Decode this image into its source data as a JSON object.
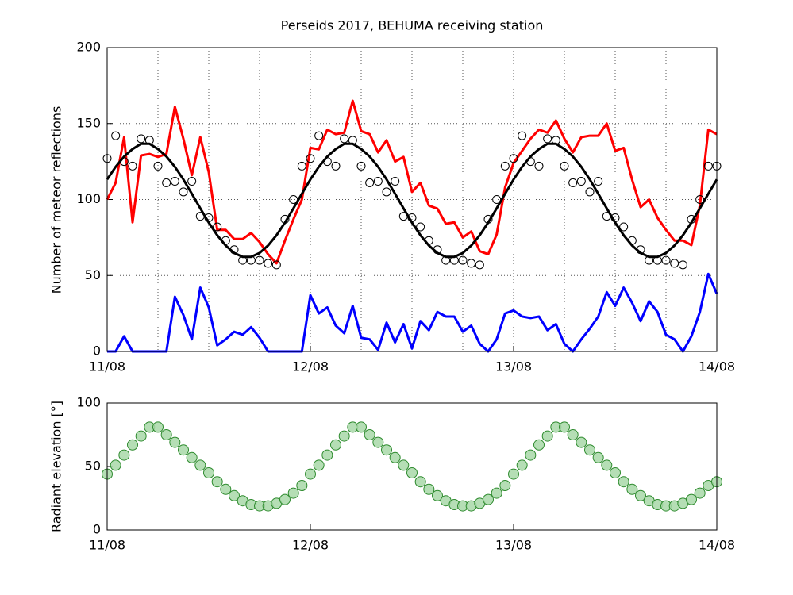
{
  "chart_data": [
    {
      "type": "line",
      "title": "Perseids 2017, BEHUMA receiving station",
      "ylabel": "Number of meteor reflections",
      "x": [
        0,
        1,
        2,
        3,
        4,
        5,
        6,
        7,
        8,
        9,
        10,
        11,
        12,
        13,
        14,
        15,
        16,
        17,
        18,
        19,
        20,
        21,
        22,
        23,
        24,
        25,
        26,
        27,
        28,
        29,
        30,
        31,
        32,
        33,
        34,
        35,
        36,
        37,
        38,
        39,
        40,
        41,
        42,
        43,
        44,
        45,
        46,
        47,
        48,
        49,
        50,
        51,
        52,
        53,
        54,
        55,
        56,
        57,
        58,
        59,
        60,
        61,
        62,
        63,
        64,
        65,
        66,
        67,
        68,
        69,
        70,
        71,
        72
      ],
      "xlim": [
        0,
        72
      ],
      "xticks": [
        {
          "value": 0,
          "label": "11/08"
        },
        {
          "value": 24,
          "label": "12/08"
        },
        {
          "value": 48,
          "label": "13/08"
        },
        {
          "value": 72,
          "label": "14/08"
        }
      ],
      "xgridlines": [
        0,
        6,
        12,
        18,
        24,
        30,
        36,
        42,
        48,
        54,
        60,
        66,
        72
      ],
      "ylim": [
        0,
        200
      ],
      "yticks": [
        0,
        50,
        100,
        150,
        200
      ],
      "grid": true,
      "series": [
        {
          "mode": "line",
          "color": "#ff0000",
          "values": [
            100,
            111,
            141,
            85,
            129,
            130,
            128,
            130,
            161,
            140,
            116,
            141,
            118,
            80,
            80,
            74,
            74,
            78,
            72,
            64,
            58,
            73,
            87,
            100,
            134,
            133,
            146,
            143,
            144,
            165,
            145,
            143,
            131,
            139,
            125,
            128,
            105,
            111,
            96,
            94,
            84,
            85,
            75,
            79,
            66,
            64,
            77,
            108,
            124,
            132,
            140,
            146,
            144,
            152,
            140,
            131,
            141,
            142,
            142,
            150,
            132,
            134,
            113,
            95,
            100,
            88,
            80,
            73,
            73,
            70,
            96,
            146,
            143
          ]
        },
        {
          "mode": "line",
          "color": "#0000ff",
          "values": [
            0,
            0,
            10,
            0,
            0,
            0,
            0,
            0,
            36,
            24,
            8,
            42,
            29,
            4,
            8,
            13,
            11,
            16,
            9,
            0,
            0,
            0,
            0,
            0,
            37,
            25,
            29,
            17,
            12,
            30,
            9,
            8,
            1,
            19,
            6,
            18,
            2,
            20,
            14,
            26,
            23,
            23,
            13,
            17,
            5,
            0,
            8,
            25,
            27,
            23,
            22,
            23,
            14,
            18,
            5,
            0,
            8,
            15,
            23,
            39,
            30,
            42,
            32,
            20,
            33,
            26,
            11,
            8,
            0,
            10,
            26,
            51,
            38
          ]
        },
        {
          "mode": "line",
          "color": "#000000",
          "values": [
            113.2,
            121.5,
            128.3,
            133.2,
            136.7,
            136.7,
            133.2,
            128.3,
            121.5,
            113.2,
            103.8,
            94.2,
            84.8,
            76.5,
            69.7,
            64.8,
            62.3,
            62.3,
            64.8,
            69.7,
            76.5,
            84.8,
            94.2,
            103.8,
            113.2,
            121.5,
            128.3,
            133.2,
            136.7,
            136.7,
            133.2,
            128.3,
            121.5,
            113.2,
            103.8,
            94.2,
            84.8,
            76.5,
            69.7,
            64.8,
            62.3,
            62.3,
            64.8,
            69.7,
            76.5,
            84.8,
            94.2,
            103.8,
            113.2,
            121.5,
            128.3,
            133.2,
            136.7,
            136.7,
            133.2,
            128.3,
            121.5,
            113.2,
            103.8,
            94.2,
            84.8,
            76.5,
            69.7,
            64.8,
            62.3,
            62.3,
            64.8,
            69.7,
            76.5,
            84.8,
            94.2,
            103.8,
            113.2
          ]
        },
        {
          "mode": "markers",
          "color": "#000000",
          "values": [
            127,
            142,
            125,
            122,
            140,
            139,
            122,
            111,
            112,
            105,
            112,
            89,
            88,
            82,
            73,
            67,
            60,
            60,
            60,
            58,
            57,
            87,
            100,
            122,
            127,
            142,
            125,
            122,
            140,
            139,
            122,
            111,
            112,
            105,
            112,
            89,
            88,
            82,
            73,
            67,
            60,
            60,
            60,
            58,
            57,
            87,
            100,
            122,
            127,
            142,
            125,
            122,
            140,
            139,
            122,
            111,
            112,
            105,
            112,
            89,
            88,
            82,
            73,
            67,
            60,
            60,
            60,
            58,
            57,
            87,
            100,
            122,
            122
          ]
        }
      ]
    },
    {
      "type": "scatter",
      "ylabel": "Radiant elevation [°]",
      "x": [
        0,
        1,
        2,
        3,
        4,
        5,
        6,
        7,
        8,
        9,
        10,
        11,
        12,
        13,
        14,
        15,
        16,
        17,
        18,
        19,
        20,
        21,
        22,
        23,
        24,
        25,
        26,
        27,
        28,
        29,
        30,
        31,
        32,
        33,
        34,
        35,
        36,
        37,
        38,
        39,
        40,
        41,
        42,
        43,
        44,
        45,
        46,
        47,
        48,
        49,
        50,
        51,
        52,
        53,
        54,
        55,
        56,
        57,
        58,
        59,
        60,
        61,
        62,
        63,
        64,
        65,
        66,
        67,
        68,
        69,
        70,
        71,
        72
      ],
      "xlim": [
        0,
        72
      ],
      "xticks": [
        {
          "value": 0,
          "label": "11/08"
        },
        {
          "value": 24,
          "label": "12/08"
        },
        {
          "value": 48,
          "label": "13/08"
        },
        {
          "value": 72,
          "label": "14/08"
        }
      ],
      "ylim": [
        0,
        100
      ],
      "yticks": [
        0,
        50,
        100
      ],
      "grid": false,
      "series": [
        {
          "mode": "markers",
          "color": "#2e8b2e",
          "fill": "#a8d8a8",
          "values": [
            44,
            51,
            59,
            67,
            74,
            81,
            81,
            75,
            69,
            63,
            57,
            51,
            45,
            38,
            32,
            27,
            23,
            20,
            19,
            19,
            21,
            24,
            29,
            35,
            44,
            51,
            59,
            67,
            74,
            81,
            81,
            75,
            69,
            63,
            57,
            51,
            45,
            38,
            32,
            27,
            23,
            20,
            19,
            19,
            21,
            24,
            29,
            35,
            44,
            51,
            59,
            67,
            74,
            81,
            81,
            75,
            69,
            63,
            57,
            51,
            45,
            38,
            32,
            27,
            23,
            20,
            19,
            19,
            21,
            24,
            29,
            35,
            38
          ]
        }
      ]
    }
  ]
}
